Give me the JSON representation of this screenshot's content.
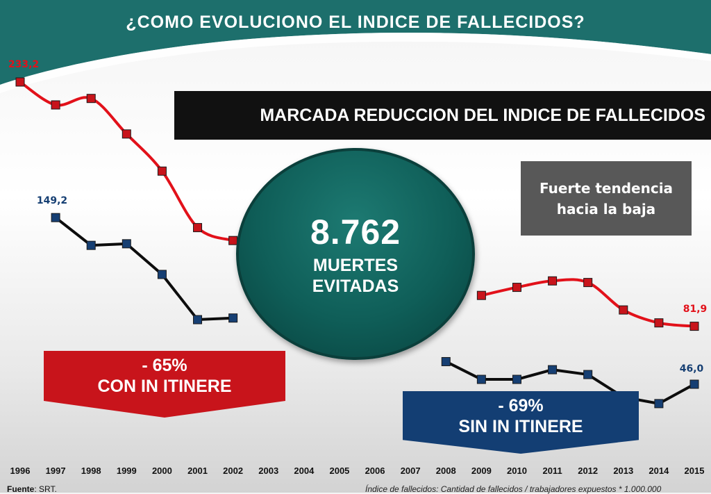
{
  "title": "¿COMO EVOLUCIONO EL INDICE DE FALLECIDOS?",
  "banner": "MARCADA REDUCCION DEL INDICE DE FALLECIDOS",
  "trend_box": {
    "line1": "Fuerte tendencia",
    "line2": "hacia la baja"
  },
  "circle": {
    "number": "8.762",
    "line1": "MUERTES",
    "line2": "EVITADAS"
  },
  "red_callout": {
    "line1": "- 65%",
    "line2": "CON IN ITINERE"
  },
  "blue_callout": {
    "line1": "- 69%",
    "line2": "SIN IN ITINERE"
  },
  "footer": {
    "source_label": "Fuente",
    "source_value": ": SRT.",
    "note": "Índice de fallecidos: Cantidad de fallecidos / trabajadores expuestos * 1.000.000"
  },
  "colors": {
    "header_teal": "#1d6f6c",
    "red_series": "#e2111a",
    "black_series": "#0d0d0d",
    "marker_red": "#c8141b",
    "marker_blue": "#163f73"
  },
  "chart_data": {
    "type": "line",
    "categories": [
      "1996",
      "1997",
      "1998",
      "1999",
      "2000",
      "2001",
      "2002",
      "2003",
      "2004",
      "2005",
      "2006",
      "2007",
      "2008",
      "2009",
      "2010",
      "2011",
      "2012",
      "2013",
      "2014",
      "2015"
    ],
    "series": [
      {
        "name": "CON IN ITINERE",
        "values": [
          233.2,
          219,
          223,
          201,
          178,
          143,
          135,
          null,
          null,
          null,
          null,
          null,
          null,
          101,
          106,
          110,
          109,
          92,
          84,
          81.9
        ]
      },
      {
        "name": "SIN IN ITINERE",
        "values": [
          null,
          149.2,
          132,
          133,
          114,
          86,
          87,
          null,
          null,
          null,
          null,
          null,
          60,
          49,
          49,
          55,
          52,
          38,
          34,
          46.0
        ]
      }
    ],
    "data_labels": {
      "red_first": "233,2",
      "red_last": "81,9",
      "black_first": "149,2",
      "black_last": "46,0"
    },
    "ylim": [
      0,
      250
    ]
  }
}
